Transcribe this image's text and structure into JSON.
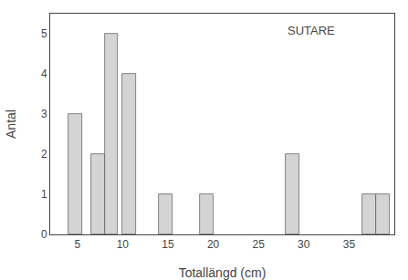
{
  "chart_data": {
    "type": "bar",
    "xlabel": "Totallängd (cm)",
    "ylabel": "Antal",
    "x": [
      4.75,
      7.25,
      8.75,
      10.75,
      14.75,
      19.25,
      28.75,
      37.25,
      38.75
    ],
    "widths": [
      1.5,
      1.5,
      1.5,
      1.5,
      1.5,
      1.5,
      1.5,
      1.5,
      1.5
    ],
    "values": [
      3,
      2,
      5,
      4,
      1,
      1,
      2,
      1,
      1
    ],
    "color": "#d4d4d4",
    "xlim": [
      2,
      40
    ],
    "xticks": [
      5,
      10,
      15,
      20,
      25,
      30,
      35
    ],
    "ylim": [
      0,
      5.5
    ],
    "yticks": [
      0,
      1,
      2,
      3,
      4,
      5
    ],
    "grid": false,
    "annotations": [
      {
        "text": "SUTARE",
        "x": 28,
        "y": 5.3
      }
    ]
  }
}
